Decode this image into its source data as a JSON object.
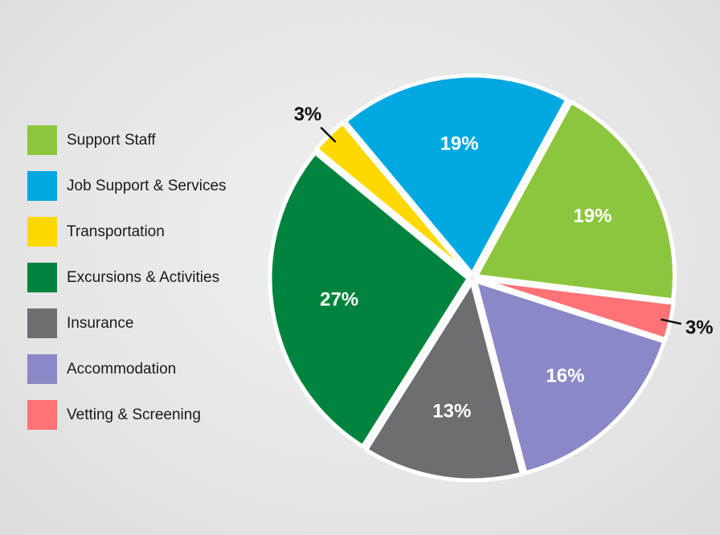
{
  "chart_data": {
    "type": "pie",
    "title": "",
    "slices": [
      {
        "label": "Support Staff",
        "value": 19,
        "display": "19%",
        "color": "#8cc63f",
        "label_placement": "inside"
      },
      {
        "label": "Job Support & Services",
        "value": 19,
        "display": "19%",
        "color": "#00a8e1",
        "label_placement": "inside"
      },
      {
        "label": "Transportation",
        "value": 3,
        "display": "3%",
        "color": "#ffd800",
        "label_placement": "outside"
      },
      {
        "label": "Excursions & Activities",
        "value": 27,
        "display": "27%",
        "color": "#00843d",
        "label_placement": "inside"
      },
      {
        "label": "Insurance",
        "value": 13,
        "display": "13%",
        "color": "#6d6e71",
        "label_placement": "inside"
      },
      {
        "label": "Accommodation",
        "value": 16,
        "display": "16%",
        "color": "#8b88c8",
        "label_placement": "inside"
      },
      {
        "label": "Vetting & Screening",
        "value": 3,
        "display": "3%",
        "color": "#ff7276",
        "label_placement": "outside"
      }
    ],
    "pie_order": [
      6,
      5,
      4,
      3,
      2,
      1,
      0
    ],
    "legend_position": "left",
    "separator_color": "#ffffff"
  }
}
